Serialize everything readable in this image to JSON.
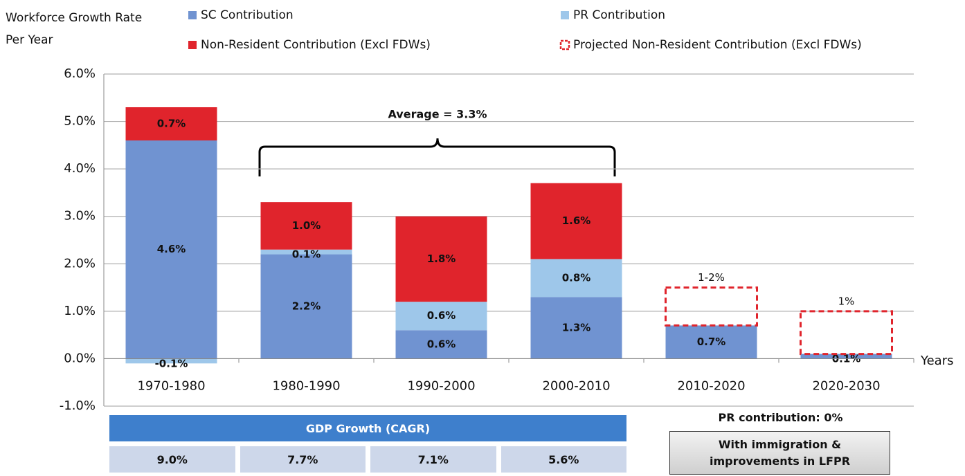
{
  "chart_data": {
    "type": "stacked_bar",
    "y_label": "Workforce Growth Rate Per Year",
    "x_label": "Years",
    "categories": [
      "1970-1980",
      "1980-1990",
      "1990-2000",
      "2000-2010",
      "2010-2020",
      "2020-2030"
    ],
    "series": [
      {
        "name": "SC Contribution",
        "color": "#7093d1",
        "values": [
          4.6,
          2.2,
          0.6,
          1.3,
          0.7,
          0.1
        ],
        "value_labels": [
          "4.6%",
          "2.2%",
          "0.6%",
          "1.3%",
          "0.7%",
          "0.1%"
        ]
      },
      {
        "name": "PR Contribution",
        "color": "#9ec7ea",
        "values": [
          -0.1,
          0.1,
          0.6,
          0.8,
          null,
          null
        ],
        "value_labels": [
          "-0.1%",
          "0.1%",
          "0.6%",
          "0.8%",
          null,
          null
        ]
      },
      {
        "name": "Non-Resident Contribution (Excl FDWs)",
        "color": "#e0242c",
        "values": [
          0.7,
          1.0,
          1.8,
          1.6,
          null,
          null
        ],
        "value_labels": [
          "0.7%",
          "1.0%",
          "1.8%",
          "1.6%",
          null,
          null
        ]
      },
      {
        "name": "Projected Non-Resident Contribution (Excl FDWs)",
        "color": "#e0242c",
        "dashed": true,
        "values": [
          null,
          null,
          null,
          null,
          0.8,
          0.9
        ]
      }
    ],
    "annotations": [
      "Average = 3.3%",
      "1-2%",
      "1%"
    ],
    "ylim": [
      -1,
      6
    ],
    "yticks": [
      {
        "value": -1,
        "label": "-1.0%"
      },
      {
        "value": 0,
        "label": "0.0%"
      },
      {
        "value": 1,
        "label": "1.0%"
      },
      {
        "value": 2,
        "label": "2.0%"
      },
      {
        "value": 3,
        "label": "3.0%"
      },
      {
        "value": 4,
        "label": "4.0%"
      },
      {
        "value": 5,
        "label": "5.0%"
      },
      {
        "value": 6,
        "label": "6.0%"
      }
    ],
    "grid": true
  },
  "gdp_table": {
    "title": "GDP Growth (CAGR)",
    "values": [
      "9.0%",
      "7.7%",
      "7.1%",
      "5.6%"
    ]
  },
  "side_note": {
    "title": "PR contribution: 0%",
    "button": "With immigration & improvements in LFPR"
  }
}
